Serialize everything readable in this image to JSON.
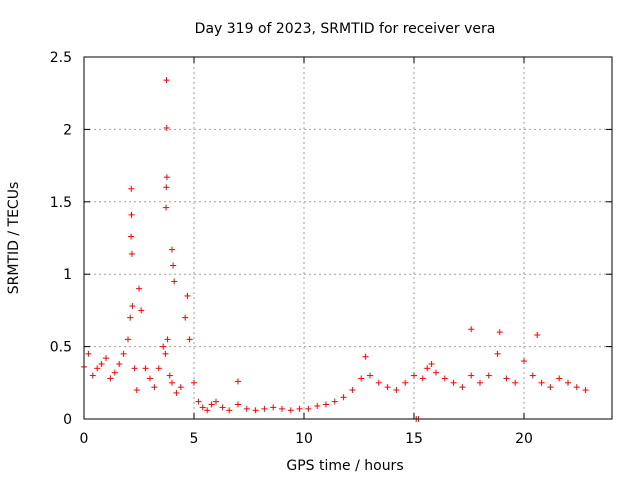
{
  "chart_data": {
    "type": "scatter",
    "title": "Day 319 of 2023, SRMTID for receiver vera",
    "xlabel": "GPS time / hours",
    "ylabel": "SRMTID / TECUs",
    "xlim": [
      0,
      24
    ],
    "ylim": [
      0,
      2.5
    ],
    "xticks": [
      0,
      5,
      10,
      15,
      20
    ],
    "xtick_labels": [
      "0",
      "5",
      "10",
      "15",
      "20"
    ],
    "yticks": [
      0,
      0.5,
      1,
      1.5,
      2,
      2.5
    ],
    "ytick_labels": [
      "0",
      "0.5",
      "1",
      "1.5",
      "2",
      "2.5"
    ],
    "grid": true,
    "marker": "+",
    "series": [
      {
        "name": "vera",
        "color": "#ff0000",
        "x": [
          0.0,
          0.2,
          0.4,
          0.6,
          0.8,
          1.0,
          1.2,
          1.4,
          1.6,
          1.8,
          2.0,
          2.1,
          2.2,
          2.3,
          2.4,
          2.5,
          2.6,
          2.8,
          3.0,
          3.2,
          3.4,
          3.6,
          3.7,
          3.8,
          3.9,
          4.0,
          4.2,
          4.4,
          4.6,
          4.8,
          5.0,
          5.2,
          5.4,
          5.6,
          5.8,
          6.0,
          6.3,
          6.6,
          7.0,
          7.4,
          7.8,
          8.2,
          8.6,
          9.0,
          9.4,
          9.8,
          10.2,
          10.6,
          11.0,
          11.4,
          11.8,
          12.2,
          12.6,
          13.0,
          13.4,
          13.8,
          14.2,
          14.6,
          15.0,
          15.2,
          15.4,
          15.6,
          15.8,
          16.0,
          16.4,
          16.8,
          17.2,
          17.6,
          18.0,
          18.4,
          18.8,
          19.2,
          19.6,
          20.0,
          20.4,
          20.8,
          21.2,
          21.6,
          22.0,
          22.4,
          22.8,
          3.75,
          3.76,
          3.77,
          3.74,
          3.73,
          2.15,
          2.16,
          2.14,
          2.18,
          4.0,
          4.05,
          4.1,
          4.7,
          7.0,
          12.8,
          15.1,
          17.6,
          18.9,
          20.6
        ],
        "y": [
          0.36,
          0.45,
          0.3,
          0.35,
          0.38,
          0.42,
          0.28,
          0.32,
          0.38,
          0.45,
          0.55,
          0.7,
          0.78,
          0.35,
          0.2,
          0.9,
          0.75,
          0.35,
          0.28,
          0.22,
          0.35,
          0.5,
          0.45,
          0.55,
          0.3,
          0.25,
          0.18,
          0.22,
          0.7,
          0.55,
          0.25,
          0.12,
          0.08,
          0.06,
          0.1,
          0.12,
          0.08,
          0.06,
          0.1,
          0.07,
          0.06,
          0.07,
          0.08,
          0.07,
          0.06,
          0.07,
          0.07,
          0.09,
          0.1,
          0.12,
          0.15,
          0.2,
          0.28,
          0.3,
          0.25,
          0.22,
          0.2,
          0.25,
          0.3,
          0.0,
          0.28,
          0.35,
          0.38,
          0.32,
          0.28,
          0.25,
          0.22,
          0.3,
          0.25,
          0.3,
          0.45,
          0.28,
          0.25,
          0.4,
          0.3,
          0.25,
          0.22,
          0.28,
          0.25,
          0.22,
          0.2,
          2.34,
          2.01,
          1.67,
          1.6,
          1.46,
          1.59,
          1.41,
          1.26,
          1.14,
          1.17,
          1.06,
          0.95,
          0.85,
          0.26,
          0.43,
          0.0,
          0.62,
          0.6,
          0.58
        ]
      }
    ]
  }
}
